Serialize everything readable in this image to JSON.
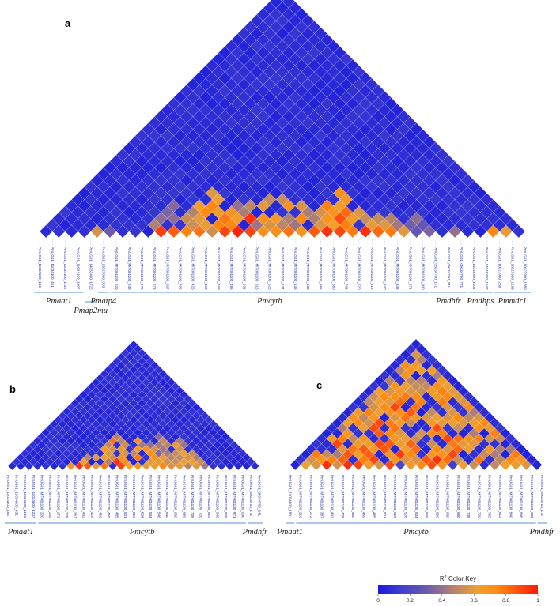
{
  "chart_data": [
    {
      "type": "heatmap",
      "panel": "a",
      "snps": [
        "PmUG01_11034100_183",
        "PmUG01_11034100_451",
        "PmUG01_11034100_1148",
        "PmUG01_11034100_1207",
        "PmUG01_14053400_1725",
        "PmUG01_13027800_803",
        "PmUG01_MIT001100_220",
        "PmUG01_MIT001100_249",
        "PmUG01_MIT001100_272",
        "PmUG01_MIT001100_278",
        "PmUG01_MIT001100_387",
        "PmUG01_MIT001100_402",
        "PmUG01_MIT001100_425",
        "PmUG01_MIT001100_460",
        "PmUG01_MIT001100_469",
        "PmUG01_MIT001100_485",
        "PmUG01_MIT001100_501",
        "PmUG01_MIT001100_515",
        "PmUG01_MIT001100_528",
        "PmUG01_MIT001100_534",
        "PmUG01_MIT001100_546",
        "PmUG01_MIT001100_630",
        "PmUG01_MIT001100_668",
        "PmUG01_MIT001100_680",
        "PmUG01_MIT001100_708",
        "PmUG01_MIT001100_720",
        "PmUG01_MIT001100_819",
        "PmUG01_MIT001100_840",
        "PmUG01_MIT001100_848",
        "PmUG01_MIT001100_871",
        "PmUG01_MIT001100_900",
        "PmUG01_05034700_171",
        "PmUG01_05034700_341",
        "PmUG01_05034700_771",
        "PmUG01_14048300_1103",
        "PmUG01_14048300_1647",
        "PmUG01_10027900_288",
        "PmUG01_10027900_1299",
        "PmUG01_10027900_1389"
      ],
      "genes": [
        {
          "name": "Pmaat1",
          "from": 0,
          "to": 3,
          "row": 0
        },
        {
          "name": "Pmap2mu",
          "from": 4,
          "to": 4,
          "row": 1
        },
        {
          "name": "Pmatp4",
          "from": 5,
          "to": 5,
          "row": 0
        },
        {
          "name": "Pmcytb",
          "from": 6,
          "to": 30,
          "row": 0
        },
        {
          "name": "Pmdhfr",
          "from": 31,
          "to": 33,
          "row": 0
        },
        {
          "name": "Pmdhps",
          "from": 34,
          "to": 35,
          "row": 0
        },
        {
          "name": "Pmmdr1",
          "from": 36,
          "to": 38,
          "row": 0
        }
      ],
      "ld_blocks": [
        {
          "from": 10,
          "to": 17,
          "r2": 0.62
        },
        {
          "from": 15,
          "to": 22,
          "r2": 0.55
        },
        {
          "from": 18,
          "to": 23,
          "r2": 0.5
        },
        {
          "from": 20,
          "to": 27,
          "r2": 0.6
        },
        {
          "from": 21,
          "to": 26,
          "r2": 0.7
        },
        {
          "from": 23,
          "to": 28,
          "r2": 0.45
        },
        {
          "from": 8,
          "to": 13,
          "r2": 0.45
        },
        {
          "from": 12,
          "to": 19,
          "r2": 0.4
        },
        {
          "from": 26,
          "to": 29,
          "r2": 0.5
        },
        {
          "from": 28,
          "to": 31,
          "r2": 0.35
        }
      ],
      "high_pairs": [
        {
          "i": 15,
          "j": 16,
          "r2": 0.98
        },
        {
          "i": 14,
          "j": 15,
          "r2": 0.9
        },
        {
          "i": 9,
          "j": 10,
          "r2": 0.92
        },
        {
          "i": 10,
          "j": 11,
          "r2": 0.85
        },
        {
          "i": 22,
          "j": 23,
          "r2": 0.95
        },
        {
          "i": 23,
          "j": 24,
          "r2": 0.9
        },
        {
          "i": 25,
          "j": 26,
          "r2": 0.95
        },
        {
          "i": 21,
          "j": 22,
          "r2": 0.85
        },
        {
          "i": 12,
          "j": 13,
          "r2": 0.8
        },
        {
          "i": 26,
          "j": 27,
          "r2": 0.82
        },
        {
          "i": 27,
          "j": 28,
          "r2": 0.78
        },
        {
          "i": 35,
          "j": 36,
          "r2": 0.75
        },
        {
          "i": 4,
          "j": 5,
          "r2": 0.55
        },
        {
          "i": 5,
          "j": 6,
          "r2": 0.3
        },
        {
          "i": 17,
          "j": 18,
          "r2": 0.7
        },
        {
          "i": 18,
          "j": 19,
          "r2": 0.72
        },
        {
          "i": 19,
          "j": 20,
          "r2": 0.8
        },
        {
          "i": 15,
          "j": 18,
          "r2": 0.95
        },
        {
          "i": 16,
          "j": 17,
          "r2": 0.9
        },
        {
          "i": 19,
          "j": 22,
          "r2": 0.75
        },
        {
          "i": 32,
          "j": 33,
          "r2": 0.4
        },
        {
          "i": 36,
          "j": 37,
          "r2": 0.6
        }
      ]
    },
    {
      "type": "heatmap",
      "panel": "b",
      "snps": [
        "PmUG01_11034100_183",
        "PmUG01_11034100_451",
        "PmUG01_11034100_1148",
        "PmUG01_11034100_1207",
        "PmUG01_MIT001100_220",
        "PmUG01_MIT001100_249",
        "PmUG01_MIT001100_272",
        "PmUG01_MIT001100_278",
        "PmUG01_MIT001100_387",
        "PmUG01_MIT001100_402",
        "PmUG01_MIT001100_425",
        "PmUG01_MIT001100_460",
        "PmUG01_MIT001100_469",
        "PmUG01_MIT001100_485",
        "PmUG01_MIT001100_501",
        "PmUG01_MIT001100_515",
        "PmUG01_MIT001100_528",
        "PmUG01_MIT001100_534",
        "PmUG01_MIT001100_546",
        "PmUG01_MIT001100_630",
        "PmUG01_MIT001100_668",
        "PmUG01_MIT001100_680",
        "PmUG01_MIT001100_708",
        "PmUG01_MIT001100_720",
        "PmUG01_MIT001100_819",
        "PmUG01_MIT001100_840",
        "PmUG01_MIT001100_848",
        "PmUG01_MIT001100_871",
        "PmUG01_MIT001100_900",
        "PmUG01_05034700_171",
        "PmUG01_05034700_341"
      ],
      "genes": [
        {
          "name": "Pmaat1",
          "from": 0,
          "to": 3,
          "row": 0
        },
        {
          "name": "Pmcytb",
          "from": 4,
          "to": 28,
          "row": 0
        },
        {
          "name": "Pmdhfr",
          "from": 29,
          "to": 30,
          "row": 0
        }
      ],
      "ld_blocks": [
        {
          "from": 9,
          "to": 17,
          "r2": 0.62
        },
        {
          "from": 12,
          "to": 19,
          "r2": 0.55
        },
        {
          "from": 14,
          "to": 22,
          "r2": 0.45
        },
        {
          "from": 17,
          "to": 24,
          "r2": 0.5
        },
        {
          "from": 8,
          "to": 12,
          "r2": 0.5
        }
      ],
      "high_pairs": [
        {
          "i": 8,
          "j": 9,
          "r2": 0.95
        },
        {
          "i": 9,
          "j": 10,
          "r2": 0.85
        },
        {
          "i": 11,
          "j": 12,
          "r2": 0.8
        },
        {
          "i": 12,
          "j": 14,
          "r2": 0.95
        },
        {
          "i": 13,
          "j": 14,
          "r2": 0.9
        },
        {
          "i": 18,
          "j": 19,
          "r2": 0.75
        },
        {
          "i": 7,
          "j": 8,
          "r2": 0.7
        },
        {
          "i": 20,
          "j": 21,
          "r2": 0.6
        },
        {
          "i": 15,
          "j": 16,
          "r2": 0.7
        }
      ]
    },
    {
      "type": "heatmap",
      "panel": "c",
      "snps": [
        "PmUG01_11034100_183",
        "PmUG01_MIT001100_220",
        "PmUG01_MIT001100_272",
        "PmUG01_MIT001100_387",
        "PmUG01_MIT001100_402",
        "PmUG01_MIT001100_425",
        "PmUG01_MIT001100_460",
        "PmUG01_MIT001100_469",
        "PmUG01_MIT001100_485",
        "PmUG01_MIT001100_501",
        "PmUG01_MIT001100_515",
        "PmUG01_MIT001100_528",
        "PmUG01_MIT001100_534",
        "PmUG01_MIT001100_546",
        "PmUG01_MIT001100_630",
        "PmUG01_MIT001100_668",
        "PmUG01_MIT001100_680",
        "PmUG01_MIT001100_708",
        "PmUG01_MIT001100_720",
        "PmUG01_MIT001100_765",
        "PmUG01_MIT001100_819",
        "PmUG01_MIT001100_840",
        "PmUG01_MIT001100_848",
        "PmUG01_MIT001100_900",
        "PmUG01_05034700_171"
      ],
      "genes": [
        {
          "name": "Pmaat1",
          "from": 0,
          "to": 0,
          "row": 0
        },
        {
          "name": "Pmcytb",
          "from": 1,
          "to": 23,
          "row": 0
        },
        {
          "name": "Pmdhfr",
          "from": 24,
          "to": 24,
          "row": 0
        }
      ],
      "ld_blocks": [
        {
          "from": 1,
          "to": 23,
          "r2": 0.6
        },
        {
          "from": 4,
          "to": 18,
          "r2": 0.7
        },
        {
          "from": 8,
          "to": 20,
          "r2": 0.65
        }
      ],
      "high_pairs": [
        {
          "i": 3,
          "j": 4,
          "r2": 0.95
        },
        {
          "i": 5,
          "j": 6,
          "r2": 0.95
        },
        {
          "i": 6,
          "j": 7,
          "r2": 0.9
        },
        {
          "i": 9,
          "j": 12,
          "r2": 0.92
        },
        {
          "i": 10,
          "j": 11,
          "r2": 0.2
        },
        {
          "i": 11,
          "j": 14,
          "r2": 0.1
        },
        {
          "i": 13,
          "j": 15,
          "r2": 0.95
        },
        {
          "i": 2,
          "j": 7,
          "r2": 0.9
        },
        {
          "i": 7,
          "j": 12,
          "r2": 0.85
        },
        {
          "i": 12,
          "j": 18,
          "r2": 0.9
        },
        {
          "i": 15,
          "j": 16,
          "r2": 0.15
        }
      ]
    }
  ],
  "color_key": {
    "title": "R",
    "title_sup": "2",
    "title_rest": " Color Key",
    "ticks": [
      0,
      0.2,
      0.4,
      0.6,
      0.8,
      1
    ],
    "tick_labels": [
      "0",
      "0.2",
      "0.4",
      "0.6",
      "0.8",
      "1"
    ],
    "stops": [
      "#1a1adb",
      "#3a3ad0",
      "#5a50b8",
      "#8a6a9a",
      "#c08a60",
      "#f0a030",
      "#ff8a10",
      "#ff5010",
      "#ff1a08"
    ]
  },
  "colors": {
    "low": "#1a1adb",
    "line": "#5b8fd8"
  }
}
